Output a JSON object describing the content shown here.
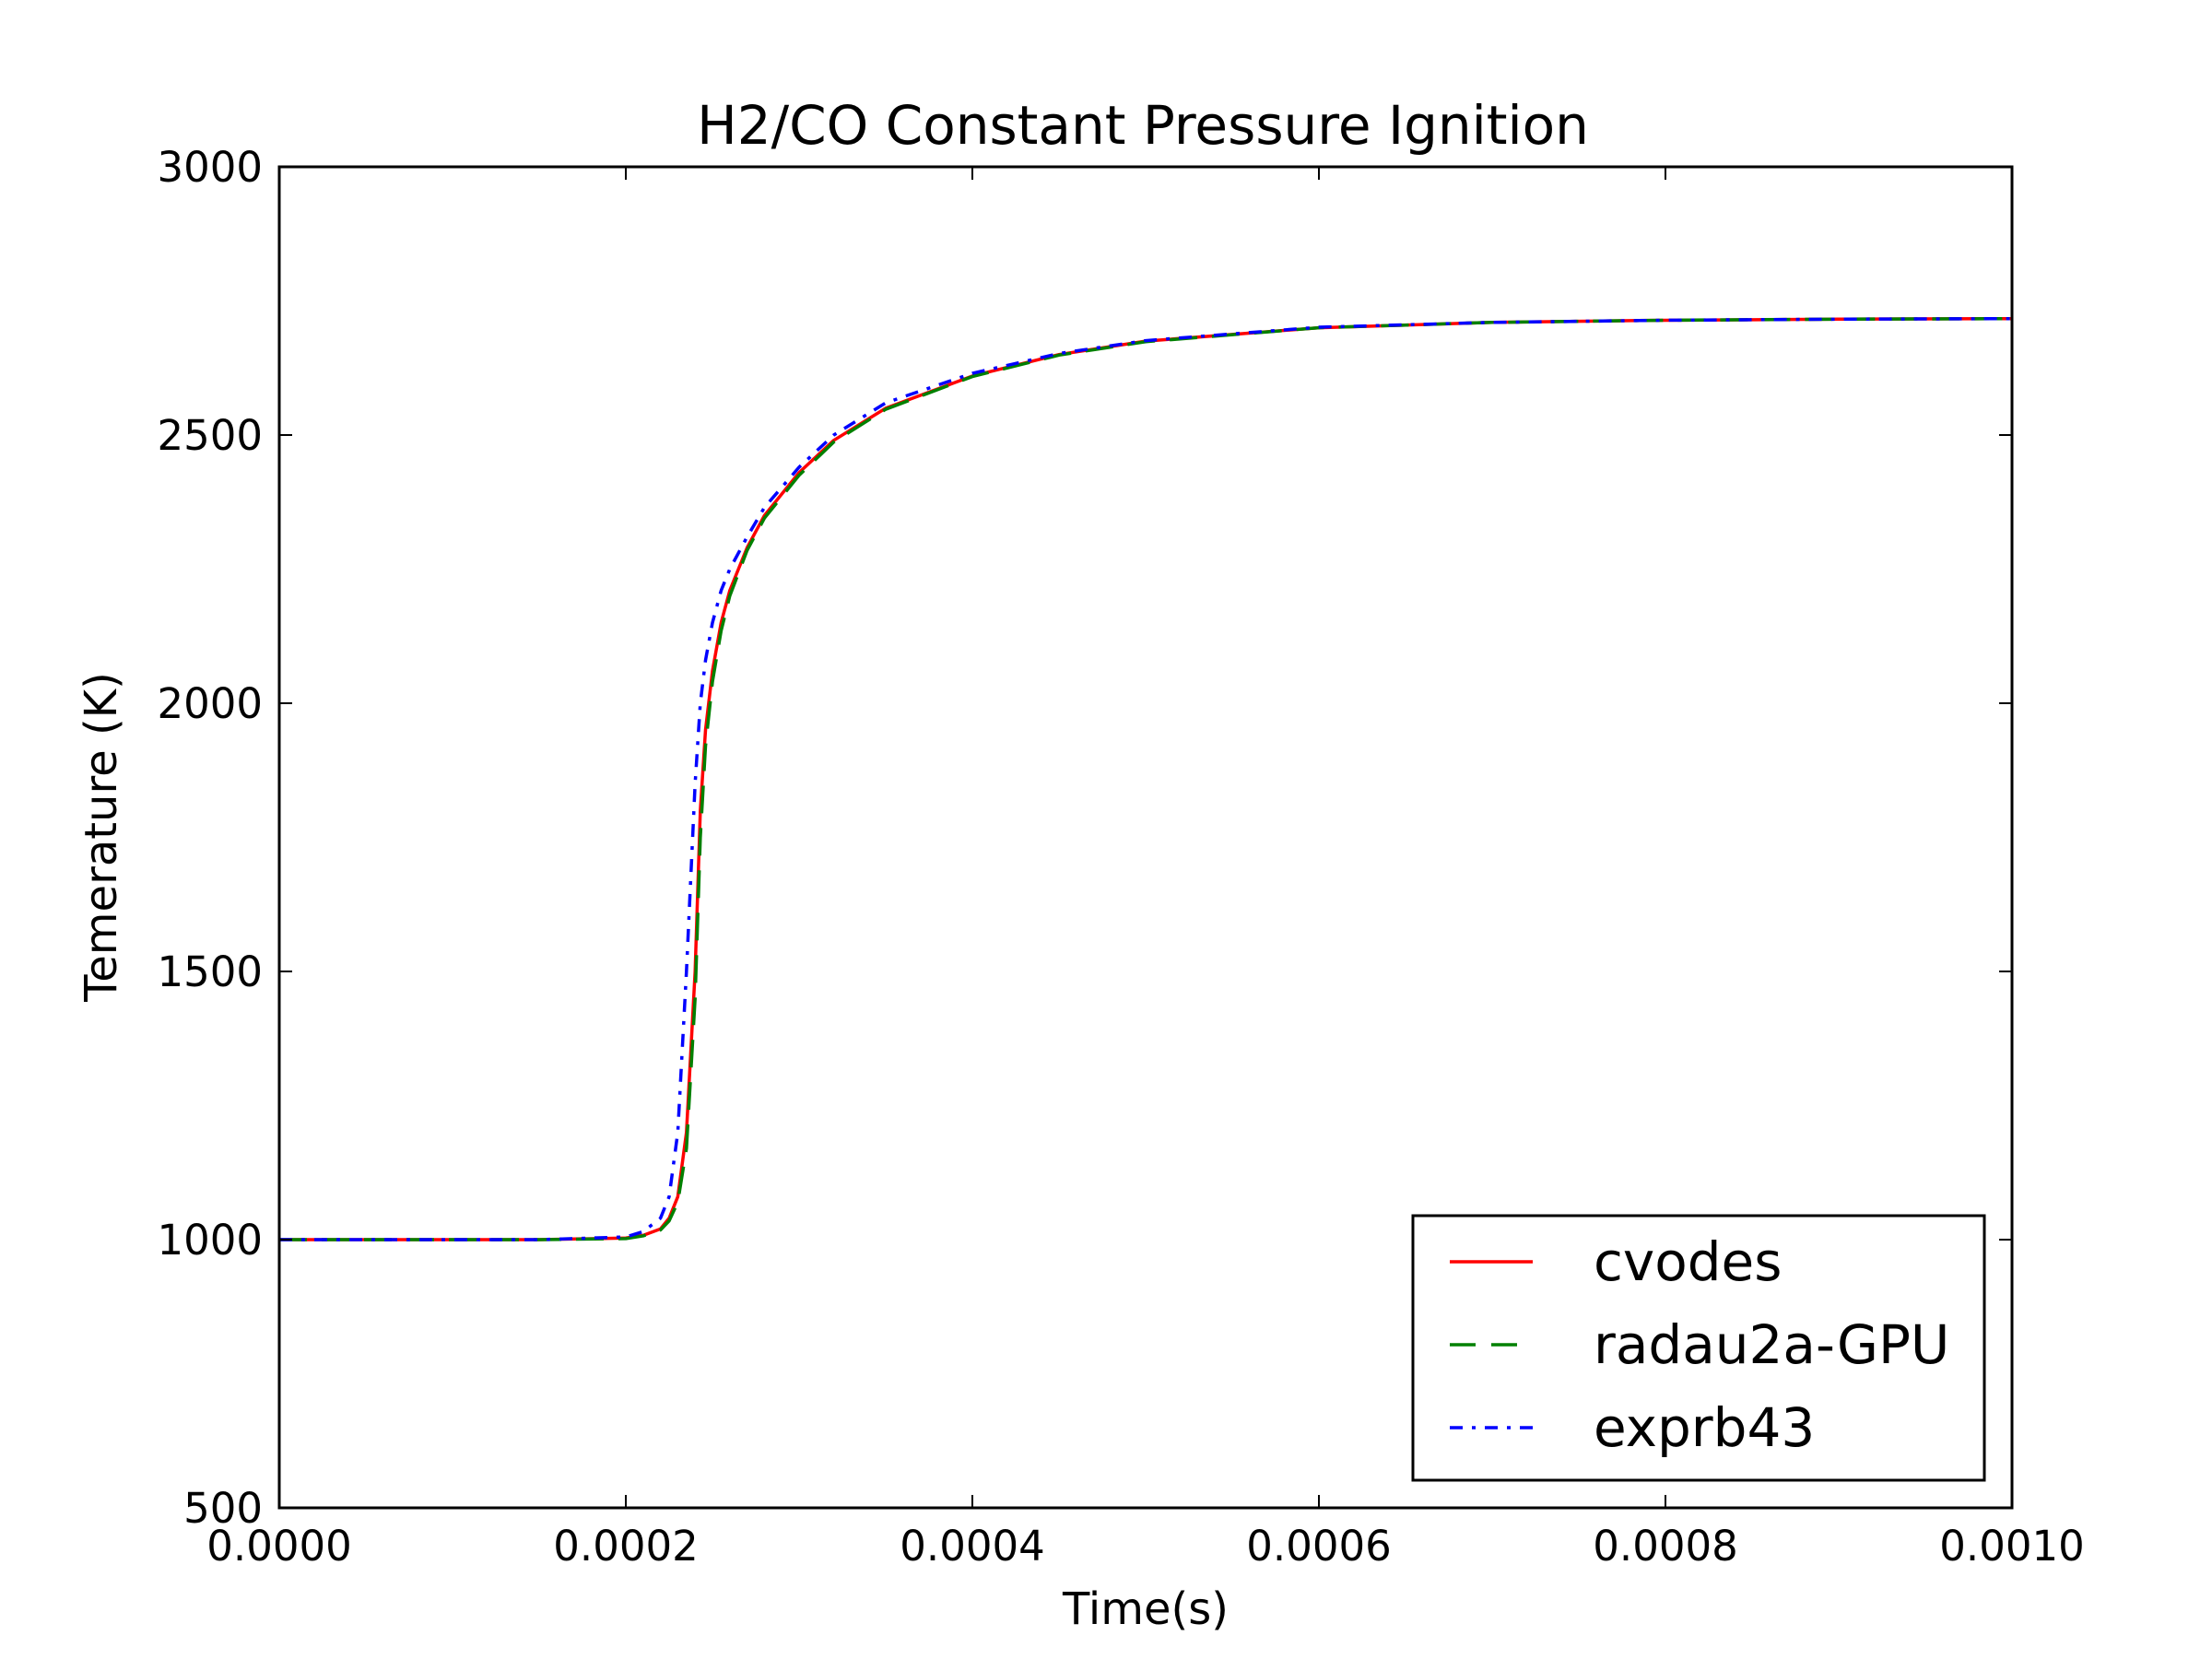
{
  "chart_data": {
    "type": "line",
    "title": "H2/CO Constant Pressure Ignition",
    "xlabel": "Time(s)",
    "ylabel": "Temerature (K)",
    "xlim": [
      0.0,
      0.001
    ],
    "ylim": [
      500,
      3000
    ],
    "xticks": [
      "0.0000",
      "0.0002",
      "0.0004",
      "0.0006",
      "0.0008",
      "0.0010"
    ],
    "yticks": [
      "500",
      "1000",
      "1500",
      "2000",
      "2500",
      "3000"
    ],
    "grid": false,
    "legend_position": "lower-right",
    "series": [
      {
        "name": "cvodes",
        "color": "#ff0000",
        "style": "solid",
        "x": [
          0.0,
          5e-05,
          0.0001,
          0.00015,
          0.0002,
          0.00021,
          0.00022,
          0.000225,
          0.00023,
          0.000235,
          0.00024,
          0.000243,
          0.000246,
          0.00025,
          0.000255,
          0.00026,
          0.00027,
          0.00028,
          0.0003,
          0.00032,
          0.00035,
          0.0004,
          0.00045,
          0.0005,
          0.0006,
          0.0007,
          0.0008,
          0.0009,
          0.001
        ],
        "y": [
          1000,
          1000,
          1000,
          1000,
          1003,
          1008,
          1020,
          1040,
          1080,
          1200,
          1500,
          1800,
          1950,
          2060,
          2150,
          2210,
          2290,
          2350,
          2430,
          2490,
          2550,
          2610,
          2650,
          2675,
          2700,
          2710,
          2714,
          2716,
          2717
        ]
      },
      {
        "name": "radau2a-GPU",
        "color": "#008000",
        "style": "dashed",
        "x": [
          0.0,
          5e-05,
          0.0001,
          0.00015,
          0.0002,
          0.00021,
          0.00022,
          0.000225,
          0.00023,
          0.000235,
          0.00024,
          0.000243,
          0.000246,
          0.00025,
          0.000255,
          0.00026,
          0.00027,
          0.00028,
          0.0003,
          0.00032,
          0.00035,
          0.0004,
          0.00045,
          0.0005,
          0.0006,
          0.0007,
          0.0008,
          0.0009,
          0.001
        ],
        "y": [
          1000,
          1000,
          1000,
          1000,
          1002,
          1007,
          1018,
          1035,
          1070,
          1170,
          1450,
          1750,
          1920,
          2040,
          2135,
          2200,
          2285,
          2345,
          2425,
          2487,
          2548,
          2609,
          2649,
          2674,
          2700,
          2710,
          2714,
          2716,
          2717
        ]
      },
      {
        "name": "exprb43",
        "color": "#0000ff",
        "style": "dashdot",
        "x": [
          0.0,
          5e-05,
          0.0001,
          0.00015,
          0.0002,
          0.00021,
          0.00022,
          0.000225,
          0.00023,
          0.000235,
          0.00024,
          0.000243,
          0.000246,
          0.00025,
          0.000255,
          0.00026,
          0.00027,
          0.00028,
          0.0003,
          0.00032,
          0.00035,
          0.0004,
          0.00045,
          0.0005,
          0.0006,
          0.0007,
          0.0008,
          0.0009,
          0.001
        ],
        "y": [
          1000,
          1000,
          1000,
          1000,
          1005,
          1015,
          1040,
          1080,
          1200,
          1500,
          1850,
          2000,
          2080,
          2150,
          2210,
          2250,
          2310,
          2365,
          2440,
          2500,
          2560,
          2615,
          2652,
          2676,
          2701,
          2710,
          2714,
          2716,
          2717
        ]
      }
    ]
  }
}
